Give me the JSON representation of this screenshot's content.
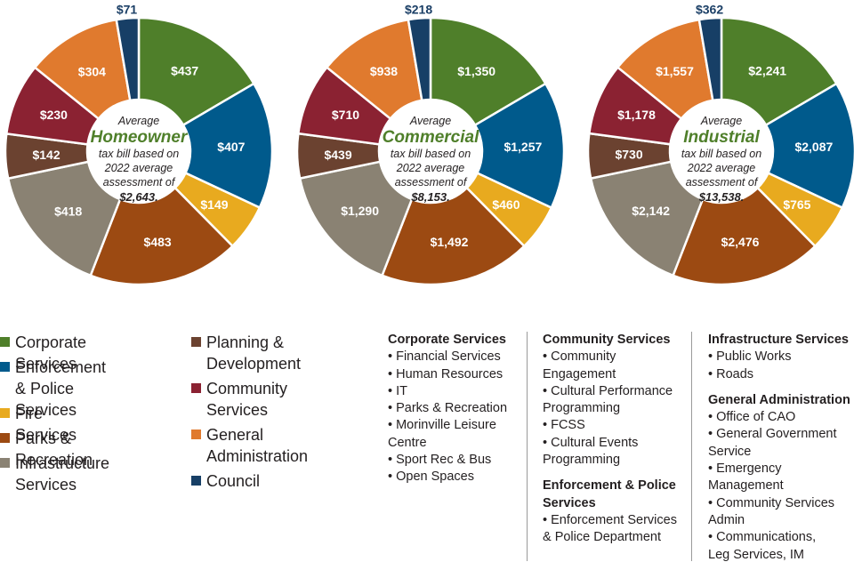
{
  "colors": {
    "corporate": "#4f7f2a",
    "enforcement": "#005a8c",
    "fire": "#e8aa1f",
    "parks": "#9c4a12",
    "infrastructure": "#8a8273",
    "planning": "#6b4230",
    "community": "#8b2232",
    "general_admin": "#e07a2e",
    "council": "#173f66"
  },
  "chart_data": [
    {
      "type": "pie",
      "title": "Homeowner",
      "subtitle_lines": [
        "tax bill based on",
        "2022 average",
        "assessment of"
      ],
      "amount": "$2,643.",
      "categories": [
        "Corporate Services",
        "Enforcement & Police Services",
        "Fire Services",
        "Parks & Recreation",
        "Infrastructure Services",
        "Planning & Development",
        "Community Services",
        "General Administration",
        "Council"
      ],
      "values": [
        437,
        407,
        149,
        483,
        418,
        142,
        230,
        304,
        71
      ],
      "labels": [
        "$437",
        "$407",
        "$149",
        "$483",
        "$418",
        "$142",
        "$230",
        "$304",
        "$71"
      ]
    },
    {
      "type": "pie",
      "title": "Commercial",
      "subtitle_lines": [
        "tax bill based on",
        "2022 average",
        "assessment of"
      ],
      "amount": "$8,153.",
      "categories": [
        "Corporate Services",
        "Enforcement & Police Services",
        "Fire Services",
        "Parks & Recreation",
        "Infrastructure Services",
        "Planning & Development",
        "Community Services",
        "General Administration",
        "Council"
      ],
      "values": [
        1350,
        1257,
        460,
        1492,
        1290,
        439,
        710,
        938,
        218
      ],
      "labels": [
        "$1,350",
        "$1,257",
        "$460",
        "$1,492",
        "$1,290",
        "$439",
        "$710",
        "$938",
        "$218"
      ]
    },
    {
      "type": "pie",
      "title": "Industrial",
      "subtitle_lines": [
        "tax bill based on",
        "2022 average",
        "assessment of"
      ],
      "amount": "$13,538.",
      "categories": [
        "Corporate Services",
        "Enforcement & Police Services",
        "Fire Services",
        "Parks & Recreation",
        "Infrastructure Services",
        "Planning & Development",
        "Community Services",
        "General Administration",
        "Council"
      ],
      "values": [
        2241,
        2087,
        765,
        2476,
        2142,
        730,
        1178,
        1557,
        362
      ],
      "labels": [
        "$2,241",
        "$2,087",
        "$765",
        "$2,476",
        "$2,142",
        "$730",
        "$1,178",
        "$1,557",
        "$362"
      ]
    }
  ],
  "center_prefix": "Average",
  "legend": [
    {
      "label": "Corporate Services",
      "color_key": "corporate"
    },
    {
      "label": "Enforcement\n& Police Services",
      "color_key": "enforcement"
    },
    {
      "label": "Fire Services",
      "color_key": "fire"
    },
    {
      "label": "Parks & Recreation",
      "color_key": "parks"
    },
    {
      "label": "Infrastructure\nServices",
      "color_key": "infrastructure"
    },
    {
      "label": "Planning &\nDevelopment",
      "color_key": "planning"
    },
    {
      "label": "Community\nServices",
      "color_key": "community"
    },
    {
      "label": "General\nAdministration",
      "color_key": "general_admin"
    },
    {
      "label": "Council",
      "color_key": "council"
    }
  ],
  "services": {
    "corporate": {
      "heading": "Corporate Services",
      "items": [
        "• Financial Services",
        "• Human Resources",
        "• IT",
        "• Parks & Recreation",
        "• Morinville Leisure\n  Centre",
        "• Sport Rec & Bus",
        "• Open Spaces"
      ]
    },
    "community": {
      "heading": "Community Services",
      "items": [
        "• Community\n  Engagement",
        "• Cultural Performance\n  Programming",
        "• FCSS",
        "• Cultural Events\n  Programming"
      ]
    },
    "enforcement": {
      "heading": "Enforcement & Police\nServices",
      "items": [
        "• Enforcement Services\n& Police Department"
      ]
    },
    "infrastructure": {
      "heading": "Infrastructure Services",
      "items": [
        "• Public Works",
        "• Roads"
      ]
    },
    "general_admin": {
      "heading": "General Administration",
      "items": [
        "• Office of CAO",
        "• General Government\n  Service",
        "• Emergency\n  Management",
        "• Community Services\n  Admin",
        "• Communications,\n  Leg Services, IM"
      ]
    }
  }
}
